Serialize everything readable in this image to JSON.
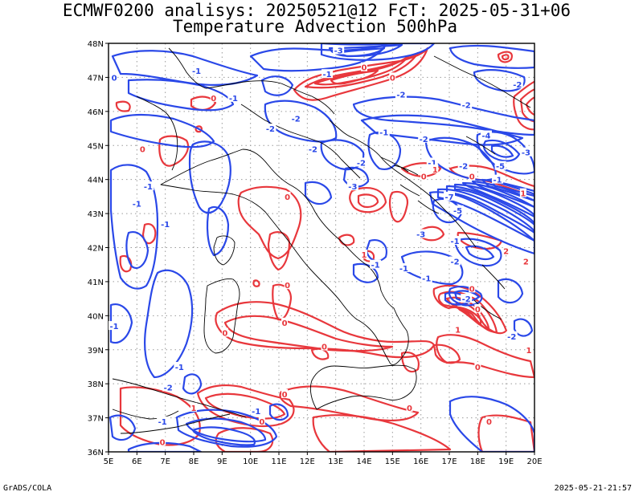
{
  "header": {
    "line1": "ECMWF0200 analisys: 20250521@12 FcT: 2025-05-31+06",
    "line2": "Temperature Advection 500hPa"
  },
  "footer": {
    "left": "GrADS/COLA",
    "right": "2025-05-21-21:57"
  },
  "map": {
    "lon_range": [
      5,
      20
    ],
    "lat_range": [
      36,
      48
    ],
    "lon_ticks": [
      "5E",
      "6E",
      "7E",
      "8E",
      "9E",
      "10E",
      "11E",
      "12E",
      "13E",
      "14E",
      "15E",
      "16E",
      "17E",
      "18E",
      "19E",
      "20E"
    ],
    "lat_ticks": [
      "36N",
      "37N",
      "38N",
      "39N",
      "40N",
      "41N",
      "42N",
      "43N",
      "44N",
      "45N",
      "46N",
      "47N",
      "48N"
    ],
    "grid": "dotted",
    "colors": {
      "positive": "#e8373c",
      "negative": "#2a48e8",
      "coast": "#000000",
      "grid": "#9a9a9a"
    },
    "contour_labels": [
      {
        "text": "-1",
        "lon": 8.1,
        "lat": 47.2,
        "sign": "neg"
      },
      {
        "text": "-1",
        "lon": 9.4,
        "lat": 46.4,
        "sign": "neg"
      },
      {
        "text": "0",
        "lon": 5.2,
        "lat": 47.0,
        "sign": "neg"
      },
      {
        "text": "0",
        "lon": 8.7,
        "lat": 46.4,
        "sign": "pos"
      },
      {
        "text": "0",
        "lon": 6.2,
        "lat": 44.9,
        "sign": "pos"
      },
      {
        "text": "-1",
        "lon": 6.4,
        "lat": 43.8,
        "sign": "neg"
      },
      {
        "text": "-1",
        "lon": 7.0,
        "lat": 42.7,
        "sign": "neg"
      },
      {
        "text": "-2",
        "lon": 10.7,
        "lat": 45.5,
        "sign": "neg"
      },
      {
        "text": "-2",
        "lon": 11.6,
        "lat": 45.8,
        "sign": "neg"
      },
      {
        "text": "-2",
        "lon": 12.2,
        "lat": 44.9,
        "sign": "neg"
      },
      {
        "text": "-2",
        "lon": 13.9,
        "lat": 44.5,
        "sign": "neg"
      },
      {
        "text": "0",
        "lon": 11.3,
        "lat": 43.5,
        "sign": "pos"
      },
      {
        "text": "-3",
        "lon": 13.6,
        "lat": 43.8,
        "sign": "neg"
      },
      {
        "text": "0",
        "lon": 14.0,
        "lat": 47.3,
        "sign": "pos"
      },
      {
        "text": "-1",
        "lon": 12.7,
        "lat": 47.1,
        "sign": "neg"
      },
      {
        "text": "-3",
        "lon": 13.1,
        "lat": 47.8,
        "sign": "neg"
      },
      {
        "text": "0",
        "lon": 15.0,
        "lat": 47.0,
        "sign": "pos"
      },
      {
        "text": "-2",
        "lon": 15.3,
        "lat": 46.5,
        "sign": "neg"
      },
      {
        "text": "-1",
        "lon": 14.7,
        "lat": 45.4,
        "sign": "neg"
      },
      {
        "text": "-2",
        "lon": 16.1,
        "lat": 45.2,
        "sign": "neg"
      },
      {
        "text": "-1",
        "lon": 16.4,
        "lat": 44.5,
        "sign": "neg"
      },
      {
        "text": "0",
        "lon": 16.1,
        "lat": 44.1,
        "sign": "pos"
      },
      {
        "text": "1",
        "lon": 16.5,
        "lat": 44.3,
        "sign": "pos"
      },
      {
        "text": "-2",
        "lon": 17.6,
        "lat": 46.2,
        "sign": "neg"
      },
      {
        "text": "-2",
        "lon": 19.4,
        "lat": 46.8,
        "sign": "neg"
      },
      {
        "text": "-4",
        "lon": 18.3,
        "lat": 45.3,
        "sign": "neg"
      },
      {
        "text": "-2",
        "lon": 17.5,
        "lat": 44.4,
        "sign": "neg"
      },
      {
        "text": "0",
        "lon": 17.8,
        "lat": 44.1,
        "sign": "pos"
      },
      {
        "text": "-5",
        "lon": 18.8,
        "lat": 44.4,
        "sign": "neg"
      },
      {
        "text": "-3",
        "lon": 19.7,
        "lat": 44.8,
        "sign": "neg"
      },
      {
        "text": "-1",
        "lon": 18.7,
        "lat": 44.0,
        "sign": "neg"
      },
      {
        "text": "1",
        "lon": 19.6,
        "lat": 43.6,
        "sign": "pos"
      },
      {
        "text": "-7",
        "lon": 17.0,
        "lat": 43.5,
        "sign": "neg"
      },
      {
        "text": "-5",
        "lon": 17.3,
        "lat": 43.1,
        "sign": "neg"
      },
      {
        "text": "-3",
        "lon": 16.0,
        "lat": 42.4,
        "sign": "neg"
      },
      {
        "text": "-1",
        "lon": 17.2,
        "lat": 42.2,
        "sign": "neg"
      },
      {
        "text": "-2",
        "lon": 17.2,
        "lat": 41.6,
        "sign": "neg"
      },
      {
        "text": "-1",
        "lon": 16.2,
        "lat": 41.1,
        "sign": "neg"
      },
      {
        "text": "2",
        "lon": 19.0,
        "lat": 41.9,
        "sign": "pos"
      },
      {
        "text": "2",
        "lon": 19.7,
        "lat": 41.6,
        "sign": "pos"
      },
      {
        "text": "1",
        "lon": 14.0,
        "lat": 41.8,
        "sign": "pos"
      },
      {
        "text": "-1",
        "lon": 14.4,
        "lat": 41.5,
        "sign": "neg"
      },
      {
        "text": "-1",
        "lon": 15.4,
        "lat": 41.4,
        "sign": "neg"
      },
      {
        "text": "0",
        "lon": 17.8,
        "lat": 40.8,
        "sign": "pos"
      },
      {
        "text": "-2",
        "lon": 17.6,
        "lat": 40.5,
        "sign": "neg"
      },
      {
        "text": "0",
        "lon": 18.0,
        "lat": 40.2,
        "sign": "pos"
      },
      {
        "text": "1",
        "lon": 17.3,
        "lat": 39.6,
        "sign": "pos"
      },
      {
        "text": "-2",
        "lon": 19.2,
        "lat": 39.4,
        "sign": "neg"
      },
      {
        "text": "1",
        "lon": 19.8,
        "lat": 39.0,
        "sign": "pos"
      },
      {
        "text": "-1",
        "lon": 6.0,
        "lat": 43.3,
        "sign": "neg"
      },
      {
        "text": "-2",
        "lon": 7.1,
        "lat": 37.9,
        "sign": "neg"
      },
      {
        "text": "-1",
        "lon": 7.5,
        "lat": 38.5,
        "sign": "neg"
      },
      {
        "text": "-1",
        "lon": 5.2,
        "lat": 39.7,
        "sign": "neg"
      },
      {
        "text": "0",
        "lon": 9.1,
        "lat": 39.5,
        "sign": "pos"
      },
      {
        "text": "0",
        "lon": 11.3,
        "lat": 40.9,
        "sign": "pos"
      },
      {
        "text": "0",
        "lon": 11.2,
        "lat": 39.8,
        "sign": "pos"
      },
      {
        "text": "0",
        "lon": 12.6,
        "lat": 39.1,
        "sign": "pos"
      },
      {
        "text": "0",
        "lon": 11.2,
        "lat": 37.7,
        "sign": "pos"
      },
      {
        "text": "0",
        "lon": 10.4,
        "lat": 36.9,
        "sign": "pos"
      },
      {
        "text": "-1",
        "lon": 10.2,
        "lat": 37.2,
        "sign": "neg"
      },
      {
        "text": "-1",
        "lon": 6.9,
        "lat": 36.9,
        "sign": "neg"
      },
      {
        "text": "1",
        "lon": 8.0,
        "lat": 37.3,
        "sign": "pos"
      },
      {
        "text": "0",
        "lon": 6.9,
        "lat": 36.3,
        "sign": "pos"
      },
      {
        "text": "0",
        "lon": 15.6,
        "lat": 37.3,
        "sign": "pos"
      },
      {
        "text": "0",
        "lon": 18.0,
        "lat": 38.5,
        "sign": "pos"
      },
      {
        "text": "0",
        "lon": 18.4,
        "lat": 36.9,
        "sign": "pos"
      }
    ]
  }
}
